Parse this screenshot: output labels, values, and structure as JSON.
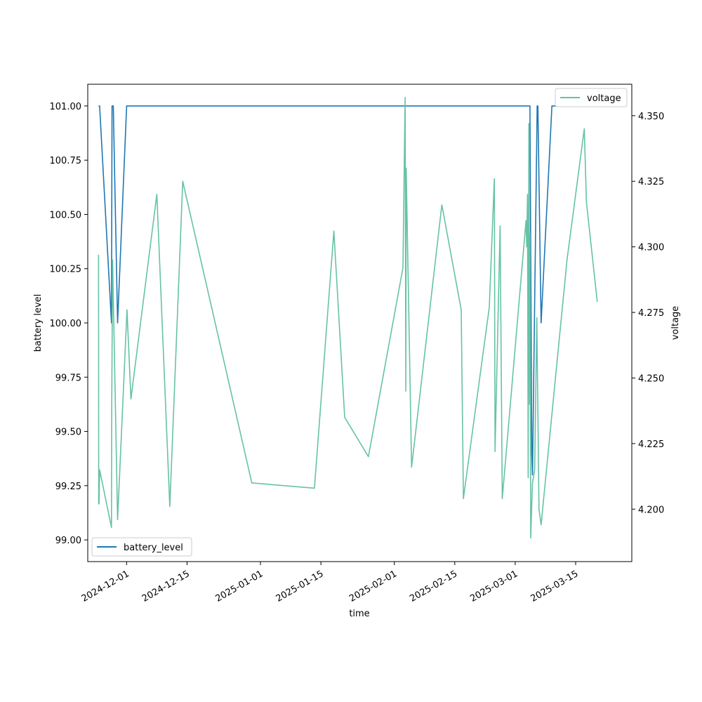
{
  "chart_data": {
    "type": "line",
    "xlabel": "time",
    "ylabel": "battery level",
    "y2label": "voltage",
    "xlim": [
      "2024-11-22",
      "2025-03-28"
    ],
    "ylim": [
      98.9,
      101.1
    ],
    "y2lim": [
      4.18,
      4.362
    ],
    "grid": false,
    "x_ticks": [
      "2024-12-01",
      "2024-12-15",
      "2025-01-01",
      "2025-01-15",
      "2025-02-01",
      "2025-02-15",
      "2025-03-01",
      "2025-03-15"
    ],
    "y_ticks": [
      "99.00",
      "99.25",
      "99.50",
      "99.75",
      "100.00",
      "100.25",
      "100.50",
      "100.75",
      "101.00"
    ],
    "y2_ticks": [
      "4.200",
      "4.225",
      "4.250",
      "4.275",
      "4.300",
      "4.325",
      "4.350"
    ],
    "legends": [
      {
        "entry": "battery_level",
        "position": "lower-left"
      },
      {
        "entry": "voltage",
        "position": "upper-right"
      }
    ],
    "series": [
      {
        "name": "battery_level",
        "axis": "left",
        "color": "#1f77b4",
        "points": [
          [
            "2024-11-24T12:00",
            101
          ],
          [
            "2024-11-24T18:00",
            101
          ],
          [
            "2024-11-27T12:00",
            100
          ],
          [
            "2024-11-27T15:00",
            101
          ],
          [
            "2024-11-27T22:00",
            101
          ],
          [
            "2024-11-28T22:00",
            100
          ],
          [
            "2024-12-01",
            101
          ],
          [
            "2025-03-04T10:00",
            101
          ],
          [
            "2025-03-04T20:00",
            99.4
          ],
          [
            "2025-03-05",
            99.3
          ],
          [
            "2025-03-06T02:00",
            101
          ],
          [
            "2025-03-06T06:00",
            101
          ],
          [
            "2025-03-07",
            100
          ],
          [
            "2025-03-09T12:00",
            101
          ],
          [
            "2025-03-20T12:00",
            101
          ]
        ]
      },
      {
        "name": "voltage",
        "axis": "right",
        "color": "#66c2a5",
        "points": [
          [
            "2024-11-24T12:00",
            4.297
          ],
          [
            "2024-11-24T13:00",
            4.202
          ],
          [
            "2024-11-24T15:00",
            4.202
          ],
          [
            "2024-11-24T18:00",
            4.215
          ],
          [
            "2024-11-27T12:00",
            4.193
          ],
          [
            "2024-11-27T13:00",
            4.236
          ],
          [
            "2024-11-27T18:00",
            4.295
          ],
          [
            "2024-11-28T22:00",
            4.196
          ],
          [
            "2024-12-01T02:00",
            4.276
          ],
          [
            "2024-12-02",
            4.242
          ],
          [
            "2024-12-08",
            4.32
          ],
          [
            "2024-12-11",
            4.201
          ],
          [
            "2024-12-14",
            4.325
          ],
          [
            "2024-12-30",
            4.21
          ],
          [
            "2025-01-13T12:00",
            4.208
          ],
          [
            "2025-01-18",
            4.306
          ],
          [
            "2025-01-20T12:00",
            4.235
          ],
          [
            "2025-01-26",
            4.22
          ],
          [
            "2025-02-03",
            4.292
          ],
          [
            "2025-02-03T12:00",
            4.357
          ],
          [
            "2025-02-03T16:00",
            4.245
          ],
          [
            "2025-02-03T18:00",
            4.33
          ],
          [
            "2025-02-05",
            4.216
          ],
          [
            "2025-02-12",
            4.316
          ],
          [
            "2025-02-16T12:00",
            4.276
          ],
          [
            "2025-02-17",
            4.204
          ],
          [
            "2025-02-23",
            4.277
          ],
          [
            "2025-02-24T04:00",
            4.326
          ],
          [
            "2025-02-24T08:00",
            4.222
          ],
          [
            "2025-02-25T12:00",
            4.308
          ],
          [
            "2025-02-26",
            4.204
          ],
          [
            "2025-03-03T12:00",
            4.31
          ],
          [
            "2025-03-03T16:00",
            4.3
          ],
          [
            "2025-03-03T20:00",
            4.32
          ],
          [
            "2025-03-04",
            4.212
          ],
          [
            "2025-03-04T04:00",
            4.347
          ],
          [
            "2025-03-04T08:00",
            4.24
          ],
          [
            "2025-03-04T10:00",
            4.305
          ],
          [
            "2025-03-04T14:00",
            4.189
          ],
          [
            "2025-03-05",
            4.21
          ],
          [
            "2025-03-05T12:00",
            4.215
          ],
          [
            "2025-03-06",
            4.273
          ],
          [
            "2025-03-06T12:00",
            4.2
          ],
          [
            "2025-03-07",
            4.194
          ],
          [
            "2025-03-13",
            4.295
          ],
          [
            "2025-03-17",
            4.345
          ],
          [
            "2025-03-17T12:00",
            4.317
          ],
          [
            "2025-03-20",
            4.279
          ]
        ]
      }
    ]
  }
}
